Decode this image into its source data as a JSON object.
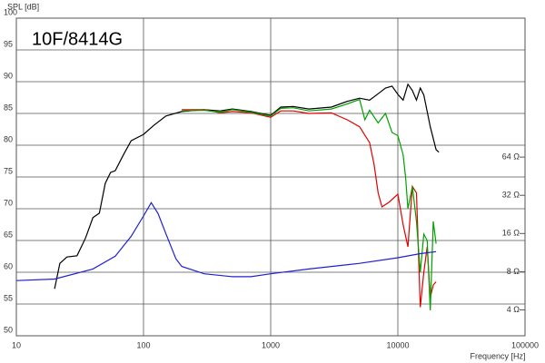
{
  "chart_data": {
    "type": "line",
    "title": "10F/8414G",
    "ylabel": "SPL [dB]",
    "xlabel": "Frequency [Hz]",
    "xscale": "log",
    "y2scale": "log",
    "grid": true,
    "xlim": [
      10,
      100000
    ],
    "xticks": [
      10,
      100,
      1000,
      10000,
      100000
    ],
    "ylim": [
      50,
      100
    ],
    "yticks": [
      50,
      55,
      60,
      65,
      70,
      75,
      80,
      85,
      90,
      95,
      100
    ],
    "y2lim": [
      2.5,
      797
    ],
    "y2ticks": [
      {
        "value": 4,
        "label": "4 Ω"
      },
      {
        "value": 8,
        "label": "8 Ω"
      },
      {
        "value": 16,
        "label": "16 Ω"
      },
      {
        "value": 32,
        "label": "32 Ω"
      },
      {
        "value": 64,
        "label": "64 Ω"
      }
    ],
    "series": [
      {
        "color": "#000000",
        "x": [
          20,
          22,
          25,
          30,
          35,
          40,
          45,
          50,
          55,
          60,
          70,
          80,
          100,
          120,
          150,
          200,
          300,
          400,
          500,
          700,
          1000,
          1200,
          1500,
          2000,
          3000,
          4000,
          5000,
          6000,
          7000,
          8000,
          9000,
          10000,
          11000,
          12000,
          13000,
          14000,
          15000,
          16000,
          18000,
          20000,
          21000
        ],
        "values": [
          57.4,
          61.4,
          62.4,
          62.6,
          65.4,
          68.6,
          69.3,
          74,
          75.7,
          76,
          78.6,
          80.7,
          81.7,
          83.1,
          84.6,
          85.3,
          85.6,
          85.4,
          85.7,
          85.3,
          84.7,
          86,
          86.1,
          85.7,
          86,
          86.9,
          87.4,
          87.1,
          88.1,
          89,
          89.3,
          88,
          87.1,
          89.6,
          88.6,
          87.1,
          89,
          87.9,
          82.9,
          79.3,
          78.9
        ]
      },
      {
        "color": "#e00000",
        "x": [
          200,
          300,
          400,
          500,
          700,
          1000,
          1200,
          1500,
          2000,
          3000,
          3500,
          4000,
          5000,
          6000,
          6500,
          7000,
          7500,
          8500,
          10000,
          11000,
          12000,
          13000,
          14000,
          15000,
          16000,
          17000,
          18000,
          19000,
          20000
        ],
        "values": [
          85.6,
          85.6,
          85.1,
          85.3,
          85.1,
          84.4,
          85.4,
          85.4,
          85,
          85.1,
          84.5,
          84,
          82.9,
          80.4,
          77,
          72.5,
          70.3,
          71,
          72.3,
          67.5,
          64,
          73.5,
          72.5,
          54.5,
          60,
          64,
          56,
          58,
          58.5
        ]
      },
      {
        "color": "#00a000",
        "x": [
          200,
          300,
          400,
          500,
          700,
          1000,
          1200,
          1500,
          2000,
          3000,
          4000,
          5000,
          5500,
          6000,
          7000,
          8000,
          9000,
          10000,
          11000,
          11500,
          12000,
          13000,
          14000,
          15000,
          16000,
          17000,
          18000,
          19000,
          20000
        ],
        "values": [
          85.4,
          85.5,
          85.2,
          85.6,
          85.2,
          84.6,
          85.8,
          85.9,
          85.4,
          85.7,
          86.5,
          87.2,
          84,
          85.5,
          83.5,
          85,
          82,
          81.5,
          78.5,
          75,
          70,
          73.5,
          68,
          60,
          66,
          65,
          54,
          68,
          64.5
        ]
      },
      {
        "color": "#2020d0",
        "axis": "y2",
        "x": [
          10,
          20,
          40,
          60,
          80,
          100,
          115,
          130,
          150,
          180,
          200,
          300,
          500,
          700,
          1000,
          2000,
          5000,
          10000,
          15000,
          20000
        ],
        "values": [
          6.8,
          7.0,
          8.4,
          10.6,
          15.2,
          22,
          28,
          23,
          15.9,
          10.1,
          8.8,
          7.7,
          7.3,
          7.3,
          7.7,
          8.4,
          9.3,
          10.3,
          11.1,
          11.5
        ]
      }
    ]
  }
}
